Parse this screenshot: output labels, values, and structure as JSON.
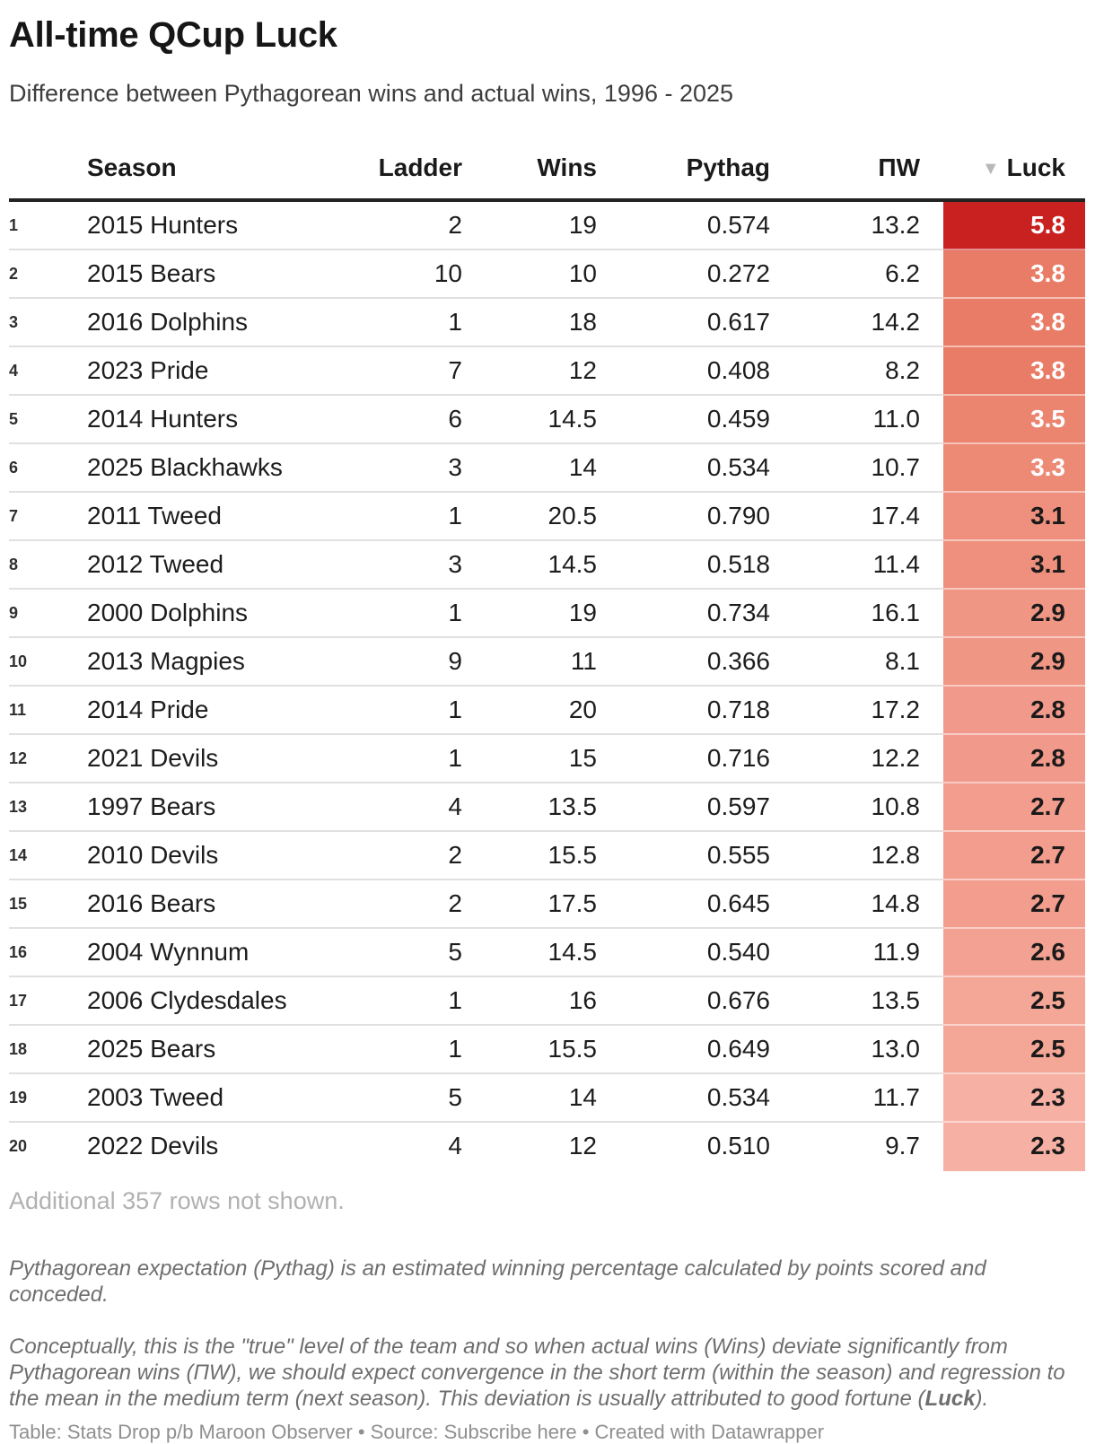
{
  "header": {
    "title": "All-time QCup Luck",
    "subtitle": "Difference between Pythagorean wins and actual wins, 1996 - 2025"
  },
  "chart_data": {
    "type": "table",
    "title": "All-time QCup Luck",
    "subtitle": "Difference between Pythagorean wins and actual wins, 1996 - 2025",
    "columns": [
      {
        "key": "rank",
        "label": ""
      },
      {
        "key": "season",
        "label": "Season"
      },
      {
        "key": "ladder",
        "label": "Ladder"
      },
      {
        "key": "wins",
        "label": "Wins"
      },
      {
        "key": "pythag",
        "label": "Pythag"
      },
      {
        "key": "pw",
        "label": "ΠW"
      },
      {
        "key": "luck",
        "label": "Luck"
      }
    ],
    "sort": {
      "column": "Luck",
      "direction": "desc",
      "indicator": "▼"
    },
    "heatmap_column": "luck",
    "rows": [
      {
        "rank": "1",
        "season": "2015 Hunters",
        "ladder": "2",
        "wins": "19",
        "pythag": "0.574",
        "pw": "13.2",
        "luck": "5.8",
        "luck_bg": "#c92020",
        "luck_fg": "#ffffff"
      },
      {
        "rank": "2",
        "season": "2015 Bears",
        "ladder": "10",
        "wins": "10",
        "pythag": "0.272",
        "pw": "6.2",
        "luck": "3.8",
        "luck_bg": "#e97c66",
        "luck_fg": "#ffffff"
      },
      {
        "rank": "3",
        "season": "2016 Dolphins",
        "ladder": "1",
        "wins": "18",
        "pythag": "0.617",
        "pw": "14.2",
        "luck": "3.8",
        "luck_bg": "#e97c66",
        "luck_fg": "#ffffff"
      },
      {
        "rank": "4",
        "season": "2023 Pride",
        "ladder": "7",
        "wins": "12",
        "pythag": "0.408",
        "pw": "8.2",
        "luck": "3.8",
        "luck_bg": "#e97c66",
        "luck_fg": "#ffffff"
      },
      {
        "rank": "5",
        "season": "2014 Hunters",
        "ladder": "6",
        "wins": "14.5",
        "pythag": "0.459",
        "pw": "11.0",
        "luck": "3.5",
        "luck_bg": "#eb8570",
        "luck_fg": "#ffffff"
      },
      {
        "rank": "6",
        "season": "2025 Blackhawks",
        "ladder": "3",
        "wins": "14",
        "pythag": "0.534",
        "pw": "10.7",
        "luck": "3.3",
        "luck_bg": "#ec8a76",
        "luck_fg": "#ffffff"
      },
      {
        "rank": "7",
        "season": "2011 Tweed",
        "ladder": "1",
        "wins": "20.5",
        "pythag": "0.790",
        "pw": "17.4",
        "luck": "3.1",
        "luck_bg": "#ee907d",
        "luck_fg": "#1a1a1a"
      },
      {
        "rank": "8",
        "season": "2012 Tweed",
        "ladder": "3",
        "wins": "14.5",
        "pythag": "0.518",
        "pw": "11.4",
        "luck": "3.1",
        "luck_bg": "#ee907d",
        "luck_fg": "#1a1a1a"
      },
      {
        "rank": "9",
        "season": "2000 Dolphins",
        "ladder": "1",
        "wins": "19",
        "pythag": "0.734",
        "pw": "16.1",
        "luck": "2.9",
        "luck_bg": "#f09685",
        "luck_fg": "#1a1a1a"
      },
      {
        "rank": "10",
        "season": "2013 Magpies",
        "ladder": "9",
        "wins": "11",
        "pythag": "0.366",
        "pw": "8.1",
        "luck": "2.9",
        "luck_bg": "#f09685",
        "luck_fg": "#1a1a1a"
      },
      {
        "rank": "11",
        "season": "2014 Pride",
        "ladder": "1",
        "wins": "20",
        "pythag": "0.718",
        "pw": "17.2",
        "luck": "2.8",
        "luck_bg": "#f1998a",
        "luck_fg": "#1a1a1a"
      },
      {
        "rank": "12",
        "season": "2021 Devils",
        "ladder": "1",
        "wins": "15",
        "pythag": "0.716",
        "pw": "12.2",
        "luck": "2.8",
        "luck_bg": "#f1998a",
        "luck_fg": "#1a1a1a"
      },
      {
        "rank": "13",
        "season": "1997 Bears",
        "ladder": "4",
        "wins": "13.5",
        "pythag": "0.597",
        "pw": "10.8",
        "luck": "2.7",
        "luck_bg": "#f29d8e",
        "luck_fg": "#1a1a1a"
      },
      {
        "rank": "14",
        "season": "2010 Devils",
        "ladder": "2",
        "wins": "15.5",
        "pythag": "0.555",
        "pw": "12.8",
        "luck": "2.7",
        "luck_bg": "#f29d8e",
        "luck_fg": "#1a1a1a"
      },
      {
        "rank": "15",
        "season": "2016 Bears",
        "ladder": "2",
        "wins": "17.5",
        "pythag": "0.645",
        "pw": "14.8",
        "luck": "2.7",
        "luck_bg": "#f29d8e",
        "luck_fg": "#1a1a1a"
      },
      {
        "rank": "16",
        "season": "2004 Wynnum",
        "ladder": "5",
        "wins": "14.5",
        "pythag": "0.540",
        "pw": "11.9",
        "luck": "2.6",
        "luck_bg": "#f3a192",
        "luck_fg": "#1a1a1a"
      },
      {
        "rank": "17",
        "season": "2006 Clydesdales",
        "ladder": "1",
        "wins": "16",
        "pythag": "0.676",
        "pw": "13.5",
        "luck": "2.5",
        "luck_bg": "#f4a697",
        "luck_fg": "#1a1a1a"
      },
      {
        "rank": "18",
        "season": "2025 Bears",
        "ladder": "1",
        "wins": "15.5",
        "pythag": "0.649",
        "pw": "13.0",
        "luck": "2.5",
        "luck_bg": "#f4a697",
        "luck_fg": "#1a1a1a"
      },
      {
        "rank": "19",
        "season": "2003 Tweed",
        "ladder": "5",
        "wins": "14",
        "pythag": "0.534",
        "pw": "11.7",
        "luck": "2.3",
        "luck_bg": "#f7b1a4",
        "luck_fg": "#1a1a1a"
      },
      {
        "rank": "20",
        "season": "2022 Devils",
        "ladder": "4",
        "wins": "12",
        "pythag": "0.510",
        "pw": "9.7",
        "luck": "2.3",
        "luck_bg": "#f7b1a4",
        "luck_fg": "#1a1a1a"
      }
    ]
  },
  "more_rows_note": "Additional 357 rows not shown.",
  "footnotes": {
    "note1": "Pythagorean expectation (Pythag) is an estimated winning percentage calculated by points scored and conceded.",
    "note2_pre": "Conceptually, this is the \"true\" level of the team and so when actual wins (Wins) deviate significantly from Pythagorean wins (ΠW), we should expect convergence in the short term (within the season) and regression to the mean in the medium term (next season). This deviation is usually attributed to good fortune (",
    "note2_bold": "Luck",
    "note2_post": ")."
  },
  "credit": {
    "prefix": "Table: Stats Drop p/b Maroon Observer • Source: ",
    "source_link": "Subscribe here",
    "suffix": " • Created with Datawrapper"
  },
  "colors": {
    "header_border": "#222222",
    "row_border": "#e0e0e0",
    "luck_max": "#c92020",
    "luck_min": "#f7b1a4"
  }
}
